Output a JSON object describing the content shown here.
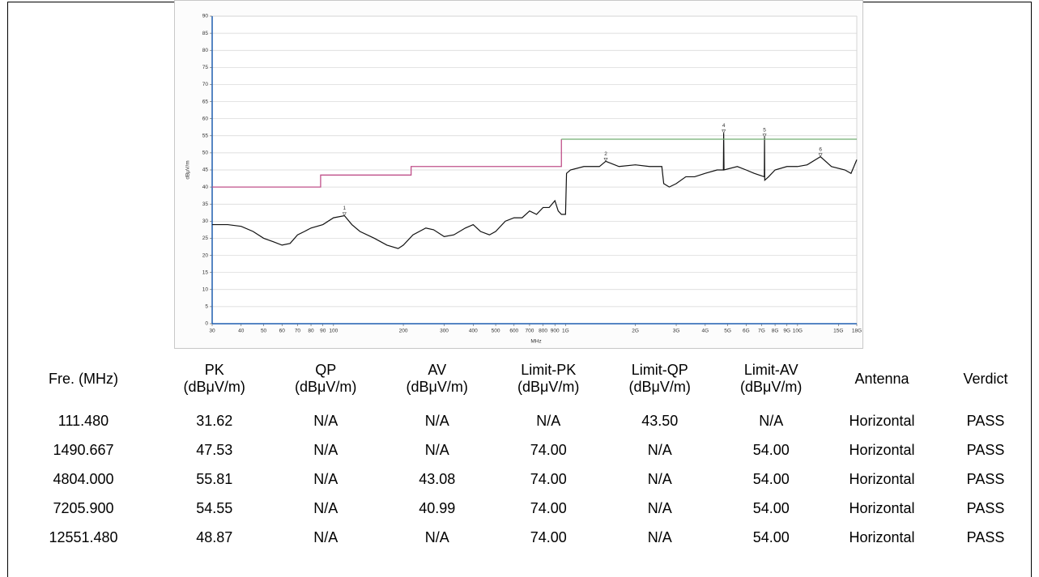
{
  "chart_data": {
    "type": "line",
    "y_label": "dBμV/m",
    "x_label": "MHz",
    "xscale": "log",
    "grid": true,
    "xlim": [
      30,
      18000
    ],
    "ylim": [
      0,
      90
    ],
    "yticks": [
      0,
      5,
      10,
      15,
      20,
      25,
      30,
      35,
      40,
      45,
      50,
      55,
      60,
      65,
      70,
      75,
      80,
      85,
      90
    ],
    "xticks": [
      30,
      40,
      50,
      60,
      70,
      80,
      90,
      100,
      200,
      300,
      400,
      500,
      600,
      700,
      800,
      900,
      {
        "value": 1000,
        "label": "1G"
      },
      {
        "value": 2000,
        "label": "2G"
      },
      {
        "value": 3000,
        "label": "3G"
      },
      {
        "value": 4000,
        "label": "4G"
      },
      {
        "value": 5000,
        "label": "5G"
      },
      {
        "value": 6000,
        "label": "6G"
      },
      {
        "value": 7000,
        "label": "7G"
      },
      {
        "value": 8000,
        "label": "8G"
      },
      {
        "value": 9000,
        "label": "9G"
      },
      {
        "value": 10000,
        "label": "10G"
      },
      {
        "value": 15000,
        "label": "15G"
      },
      {
        "value": 18000,
        "label": "18G"
      }
    ],
    "series": [
      {
        "color": "#111111",
        "x": [
          30,
          35,
          40,
          45,
          50,
          55,
          60,
          65,
          70,
          75,
          80,
          90,
          100,
          111.48,
          120,
          130,
          150,
          170,
          190,
          200,
          220,
          250,
          270,
          300,
          330,
          370,
          400,
          430,
          470,
          500,
          550,
          600,
          650,
          700,
          750,
          800,
          850,
          900,
          930,
          960,
          1000,
          1010,
          1050,
          1200,
          1400,
          1490.667,
          1700,
          2000,
          2300,
          2600,
          2650,
          2800,
          3000,
          3300,
          3600,
          4000,
          4500,
          4790,
          4804,
          4820,
          5500,
          6000,
          6500,
          7190,
          7205.9,
          7220,
          7500,
          8000,
          9000,
          10000,
          11000,
          12551.48,
          14000,
          16000,
          17000,
          18000
        ],
        "values": [
          29,
          29,
          28.5,
          27,
          25,
          24,
          23,
          23.5,
          26,
          27,
          28,
          29,
          31,
          31.62,
          29,
          27,
          25,
          23,
          22,
          23,
          26,
          28,
          27.5,
          25.5,
          26,
          28,
          29,
          27,
          26,
          27,
          30,
          31,
          31,
          33,
          32,
          34,
          34,
          36,
          33,
          32,
          32,
          44,
          45,
          46,
          46,
          47.53,
          46,
          46.5,
          46,
          46,
          41,
          40,
          41,
          43,
          43,
          44,
          45,
          45,
          55.81,
          45,
          46,
          45,
          44,
          43,
          54.55,
          42,
          43,
          45,
          46,
          46,
          46.5,
          48.87,
          46,
          45,
          44,
          48
        ]
      },
      {
        "color": "#c0508a",
        "x": [
          30,
          88,
          88,
          216,
          216,
          960,
          960
        ],
        "values": [
          40,
          40,
          43.5,
          43.5,
          46,
          46,
          54
        ]
      },
      {
        "color": "#70ad70",
        "x": [
          960,
          18000
        ],
        "values": [
          54,
          54
        ]
      }
    ],
    "markers": {
      "labels": [
        "1",
        "2",
        "4",
        "5",
        "6"
      ],
      "x": [
        111.48,
        1490.667,
        4804,
        7205.9,
        12551.48
      ],
      "values": [
        31.62,
        47.53,
        55.81,
        54.55,
        48.87
      ]
    }
  },
  "table": {
    "headers": [
      [
        "Fre. (MHz)"
      ],
      [
        "PK",
        "(dBμV/m)"
      ],
      [
        "QP",
        "(dBμV/m)"
      ],
      [
        "AV",
        "(dBμV/m)"
      ],
      [
        "Limit-PK",
        "(dBμV/m)"
      ],
      [
        "Limit-QP",
        "(dBμV/m)"
      ],
      [
        "Limit-AV",
        "(dBμV/m)"
      ],
      [
        "Antenna"
      ],
      [
        "Verdict"
      ]
    ],
    "rows": [
      [
        "111.480",
        "31.62",
        "N/A",
        "N/A",
        "N/A",
        "43.50",
        "N/A",
        "Horizontal",
        "PASS"
      ],
      [
        "1490.667",
        "47.53",
        "N/A",
        "N/A",
        "74.00",
        "N/A",
        "54.00",
        "Horizontal",
        "PASS"
      ],
      [
        "4804.000",
        "55.81",
        "N/A",
        "43.08",
        "74.00",
        "N/A",
        "54.00",
        "Horizontal",
        "PASS"
      ],
      [
        "7205.900",
        "54.55",
        "N/A",
        "40.99",
        "74.00",
        "N/A",
        "54.00",
        "Horizontal",
        "PASS"
      ],
      [
        "12551.480",
        "48.87",
        "N/A",
        "N/A",
        "74.00",
        "N/A",
        "54.00",
        "Horizontal",
        "PASS"
      ]
    ]
  }
}
